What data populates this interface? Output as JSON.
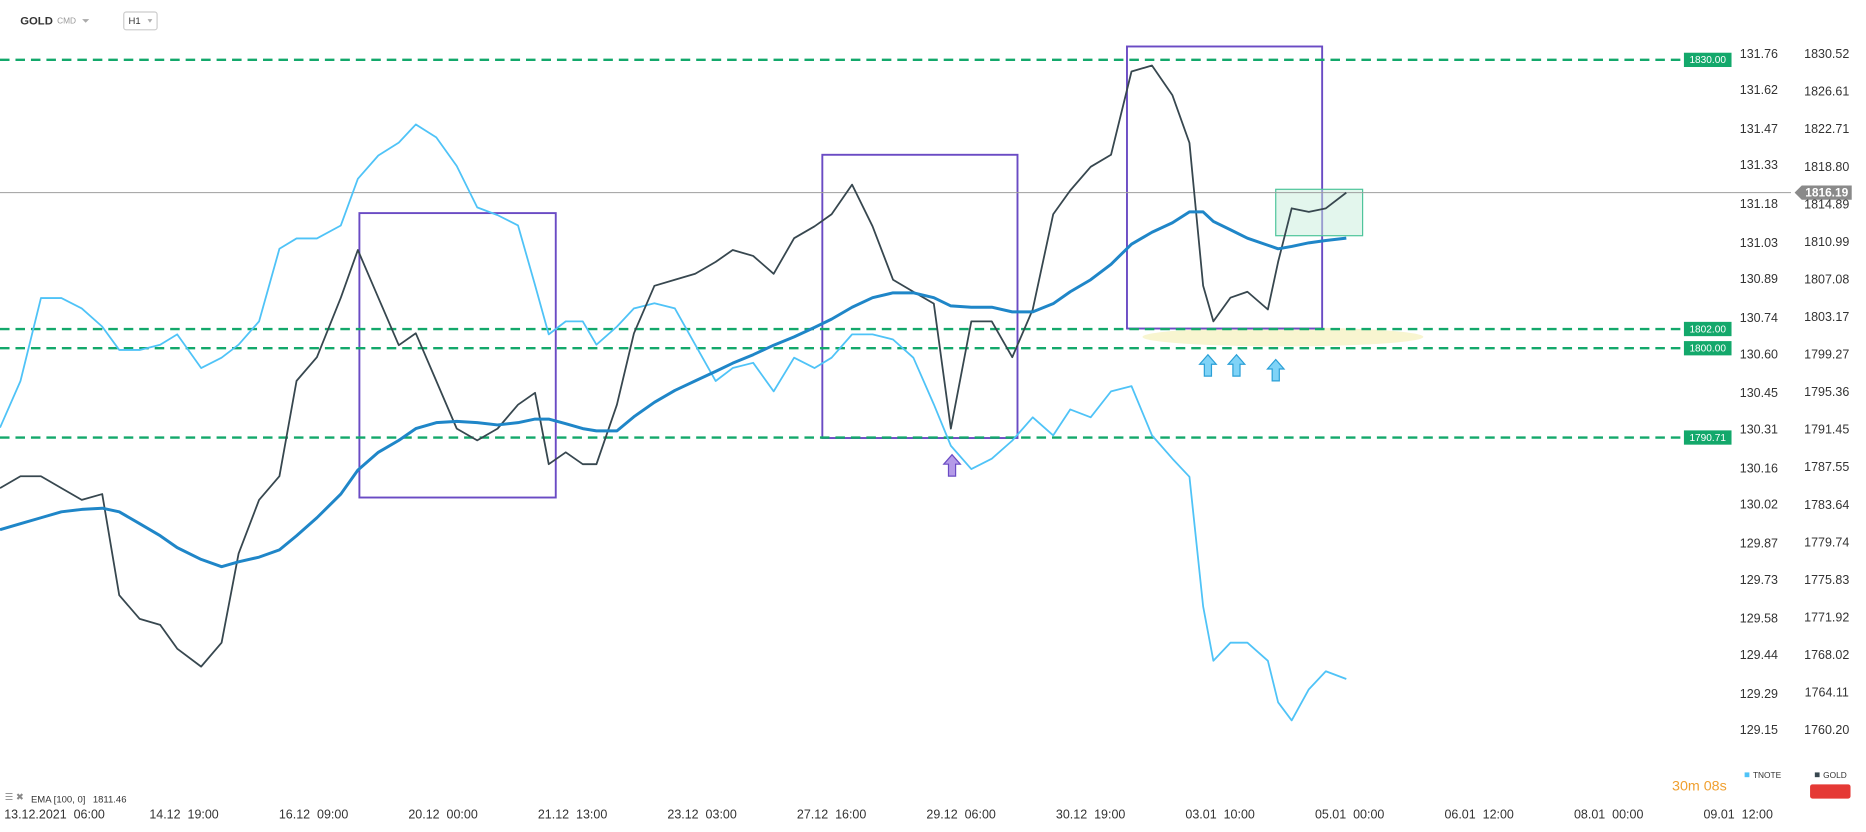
{
  "chart_data": {
    "type": "line",
    "symbol": "GOLD",
    "market": "CMD",
    "interval": "H1",
    "timer": "30m 08s",
    "x": [
      0,
      6,
      12,
      18,
      24,
      30,
      35,
      41,
      47,
      52,
      59,
      65,
      70,
      76,
      82,
      87,
      93,
      100,
      105,
      111,
      117,
      122,
      128,
      134,
      140,
      146,
      152,
      157,
      161,
      166,
      171,
      175,
      181,
      186,
      192,
      198,
      204,
      210,
      215,
      221,
      227,
      233,
      239,
      244,
      250,
      256,
      262,
      268,
      274,
      279,
      285,
      291,
      297,
      303,
      309,
      314,
      320,
      326,
      332,
      338,
      344,
      349,
      353,
      356,
      361,
      366,
      372,
      375,
      379,
      384,
      389,
      395
    ],
    "xlim": [
      0,
      525.5
    ],
    "xticks": [
      {
        "value": 16,
        "label": "13.12.2021  06:00"
      },
      {
        "value": 54,
        "label": "14.12  19:00"
      },
      {
        "value": 92,
        "label": "16.12  09:00"
      },
      {
        "value": 130,
        "label": "20.12  00:00"
      },
      {
        "value": 168,
        "label": "21.12  13:00"
      },
      {
        "value": 206,
        "label": "23.12  03:00"
      },
      {
        "value": 244,
        "label": "27.12  16:00"
      },
      {
        "value": 282,
        "label": "29.12  06:00"
      },
      {
        "value": 320,
        "label": "30.12  19:00"
      },
      {
        "value": 358,
        "label": "03.01  10:00"
      },
      {
        "value": 396,
        "label": "05.01  00:00"
      },
      {
        "value": 434,
        "label": "06.01  12:00"
      },
      {
        "value": 472,
        "label": "08.01  00:00"
      },
      {
        "value": 510,
        "label": "09.01  12:00"
      }
    ],
    "ylim": [
      1752.65,
      1836.22
    ],
    "yticks": [
      1830.52,
      1826.61,
      1822.71,
      {
        "value": 1818.8,
        "label": "1818.80"
      },
      1814.89,
      1810.99,
      1807.08,
      1803.17,
      1799.27,
      1795.36,
      1791.45,
      1787.55,
      1783.64,
      1779.74,
      1775.83,
      1771.92,
      1768.02,
      1764.11,
      {
        "value": 1760.2,
        "label": "1760.20"
      }
    ],
    "y2lim": [
      128.87,
      131.97
    ],
    "y2ticks": [
      131.76,
      131.62,
      131.47,
      131.33,
      131.18,
      131.03,
      130.89,
      130.74,
      {
        "value": 130.6,
        "label": "130.60"
      },
      130.45,
      130.31,
      130.16,
      130.02,
      129.87,
      129.73,
      129.58,
      129.44,
      129.29,
      129.15
    ],
    "series": [
      {
        "name": "GOLD",
        "color": "#37474f",
        "axis": "y",
        "values": [
          1785.45,
          1786.69,
          1786.69,
          1785.45,
          1784.22,
          1784.83,
          1774.31,
          1771.84,
          1771.22,
          1768.74,
          1766.88,
          1769.36,
          1778.64,
          1784.22,
          1786.69,
          1796.6,
          1799.07,
          1805.26,
          1810.22,
          1805.26,
          1800.31,
          1801.55,
          1796.6,
          1791.64,
          1790.41,
          1791.64,
          1794.12,
          1795.36,
          1787.93,
          1789.17,
          1787.93,
          1787.93,
          1794.12,
          1801.55,
          1806.5,
          1807.12,
          1807.74,
          1808.98,
          1810.22,
          1809.6,
          1807.74,
          1811.45,
          1812.69,
          1813.93,
          1817.02,
          1812.69,
          1807.12,
          1805.88,
          1804.64,
          1791.64,
          1802.79,
          1802.79,
          1799.07,
          1804.03,
          1813.93,
          1816.41,
          1818.88,
          1820.12,
          1828.79,
          1829.41,
          1826.31,
          1821.36,
          1806.5,
          1802.79,
          1805.26,
          1805.88,
          1804.03,
          1808.98,
          1814.55,
          1814.18,
          1814.55,
          1816.19
        ]
      },
      {
        "name": "TNOTE",
        "color": "#4fc3f7",
        "axis": "y2",
        "values": [
          130.32,
          130.5,
          130.82,
          130.82,
          130.78,
          130.71,
          130.62,
          130.62,
          130.64,
          130.68,
          130.55,
          130.59,
          130.64,
          130.73,
          131.01,
          131.05,
          131.05,
          131.1,
          131.28,
          131.37,
          131.42,
          131.49,
          131.44,
          131.33,
          131.17,
          131.14,
          131.1,
          130.87,
          130.68,
          130.73,
          130.73,
          130.64,
          130.71,
          130.78,
          130.8,
          130.78,
          130.64,
          130.5,
          130.55,
          130.57,
          130.46,
          130.59,
          130.55,
          130.59,
          130.68,
          130.68,
          130.66,
          130.59,
          130.41,
          130.25,
          130.16,
          130.2,
          130.27,
          130.36,
          130.29,
          130.39,
          130.36,
          130.46,
          130.48,
          130.29,
          130.2,
          130.13,
          129.63,
          129.42,
          129.49,
          129.49,
          129.42,
          129.26,
          129.19,
          129.31,
          129.38,
          129.35
        ]
      },
      {
        "name": "EMA [100, 0]",
        "color": "#1f86c8",
        "axis": "y",
        "values": [
          1781.12,
          1781.74,
          1782.36,
          1782.98,
          1783.23,
          1783.35,
          1782.98,
          1781.74,
          1780.5,
          1779.26,
          1778.03,
          1777.28,
          1777.78,
          1778.27,
          1779.02,
          1780.5,
          1782.36,
          1784.83,
          1787.31,
          1789.17,
          1790.41,
          1791.64,
          1792.26,
          1792.39,
          1792.26,
          1792.02,
          1792.26,
          1792.63,
          1792.63,
          1792.14,
          1791.64,
          1791.4,
          1791.4,
          1792.88,
          1794.37,
          1795.61,
          1796.6,
          1797.59,
          1798.45,
          1799.32,
          1800.31,
          1801.18,
          1802.17,
          1803.03,
          1804.27,
          1805.26,
          1805.76,
          1805.76,
          1805.26,
          1804.4,
          1804.27,
          1804.27,
          1803.78,
          1803.78,
          1804.64,
          1805.88,
          1807.12,
          1808.73,
          1810.83,
          1812.07,
          1813.06,
          1814.18,
          1814.18,
          1813.19,
          1812.32,
          1811.45,
          1810.71,
          1810.34,
          1810.59,
          1810.96,
          1811.21,
          1811.46
        ]
      }
    ],
    "levels": [
      {
        "value": 1830,
        "label": "1830.00"
      },
      {
        "value": 1802,
        "label": "1802.00"
      },
      {
        "value": 1800,
        "label": "1800.00"
      },
      {
        "value": 1790.71,
        "label": "1790.71"
      }
    ],
    "level_color": "#13a86b",
    "last_price": 1816.19
  }
}
